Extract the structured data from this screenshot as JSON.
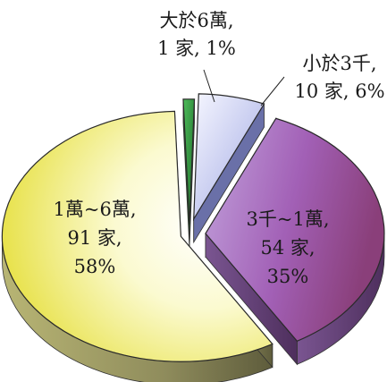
{
  "chart_data": {
    "type": "pie",
    "title": "",
    "slices": [
      {
        "label_lines": [
          "大於6萬,",
          "1 家, 1%"
        ],
        "count": 1,
        "percent": 1,
        "color_top": "#2f8a3a",
        "color_side": "#1c5a24"
      },
      {
        "label_lines": [
          "小於3千,",
          "10 家, 6%"
        ],
        "count": 10,
        "percent": 6,
        "color_top": "#b9bfe6",
        "color_side": "#6a70a8"
      },
      {
        "label_lines": [
          "3千~1萬,",
          "54 家,",
          "35%"
        ],
        "count": 54,
        "percent": 35,
        "color_top": "#a467b4",
        "color_side": "#6b3c7b"
      },
      {
        "label_lines": [
          "1萬~6萬,",
          "91 家,",
          "58%"
        ],
        "count": 91,
        "percent": 58,
        "color_top": "#f4f29a",
        "color_side": "#8f8f5e"
      }
    ],
    "legend": "none",
    "style": "3d-exploded"
  }
}
